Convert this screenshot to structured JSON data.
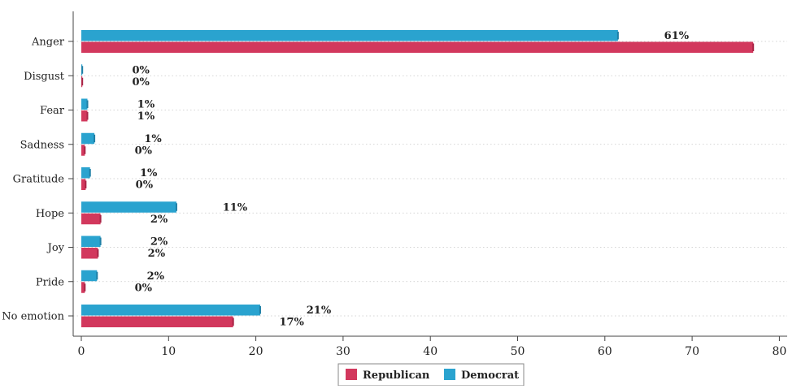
{
  "chart_data": {
    "type": "bar",
    "orientation": "horizontal",
    "categories": [
      "Anger",
      "Disgust",
      "Fear",
      "Sadness",
      "Gratitude",
      "Hope",
      "Joy",
      "Pride",
      "No emotion"
    ],
    "series": [
      {
        "name": "Democrat",
        "color": "#2aa3cf",
        "values": [
          61.5,
          0.1,
          0.7,
          1.5,
          1.0,
          10.9,
          2.2,
          1.8,
          20.5
        ],
        "labels": [
          "61%",
          "0%",
          "1%",
          "1%",
          "1%",
          "11%",
          "2%",
          "2%",
          "21%"
        ]
      },
      {
        "name": "Republican",
        "color": "#d2385d",
        "values": [
          77.0,
          0.1,
          0.7,
          0.4,
          0.5,
          2.2,
          1.9,
          0.4,
          17.4
        ],
        "labels": [
          "",
          "0%",
          "1%",
          "0%",
          "0%",
          "2%",
          "2%",
          "0%",
          "17%"
        ]
      }
    ],
    "xlim": [
      0,
      80
    ],
    "xticks": [
      "0",
      "10",
      "20",
      "30",
      "40",
      "50",
      "60",
      "70",
      "80"
    ],
    "xlabel": "",
    "ylabel": "",
    "grid": "horizontal-dotted",
    "legend_position": "bottom-center",
    "legend_order": [
      "Republican",
      "Democrat"
    ]
  }
}
